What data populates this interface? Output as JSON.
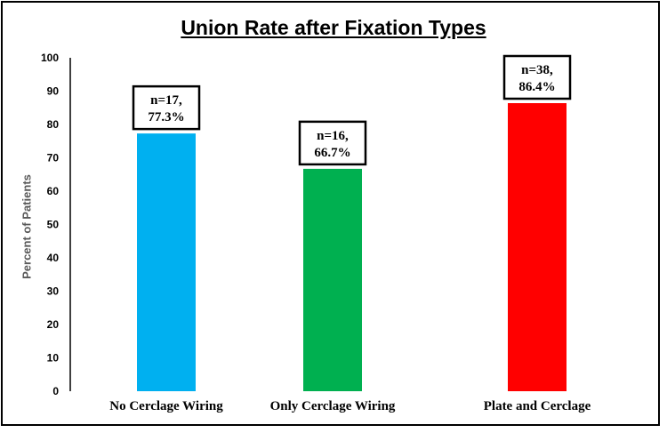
{
  "chart_data": {
    "type": "bar",
    "title": "Union Rate after Fixation Types",
    "xlabel": "",
    "ylabel": "Percent of Patients",
    "ylim": [
      0,
      100
    ],
    "yticks": [
      0,
      10,
      20,
      30,
      40,
      50,
      60,
      70,
      80,
      90,
      100
    ],
    "categories": [
      "No Cerclage Wiring",
      "Only Cerclage Wiring",
      "Plate and Cerclage"
    ],
    "values": [
      77.3,
      66.7,
      86.4
    ],
    "colors": [
      "#00b0f0",
      "#00b050",
      "#ff0000"
    ],
    "data_labels": [
      [
        "n=17,",
        "77.3%"
      ],
      [
        "n=16,",
        "66.7%"
      ],
      [
        "n=38,",
        "86.4%"
      ]
    ],
    "grid": false,
    "legend": "none"
  }
}
